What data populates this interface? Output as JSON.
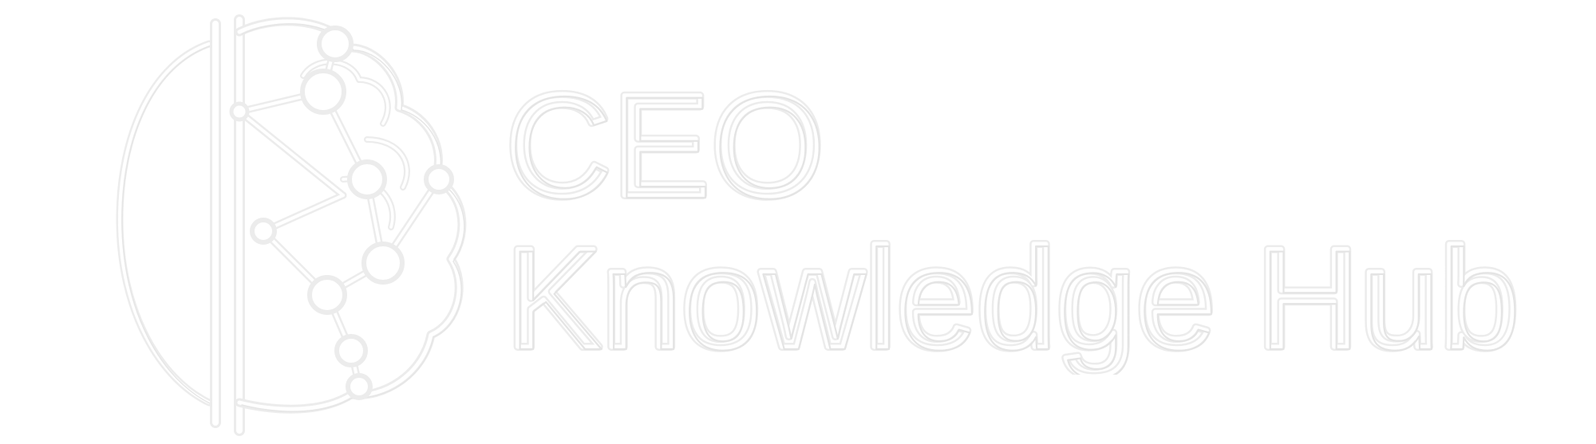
{
  "logo": {
    "icon": "brain-network-icon",
    "colors": {
      "background": "#ffffff",
      "emboss_shadow": "#ececec",
      "emboss_edge": "#e4e4e4",
      "fill": "#ffffff"
    }
  },
  "wordmark": {
    "line1": "CEO",
    "line2": "Knowledge Hub"
  }
}
